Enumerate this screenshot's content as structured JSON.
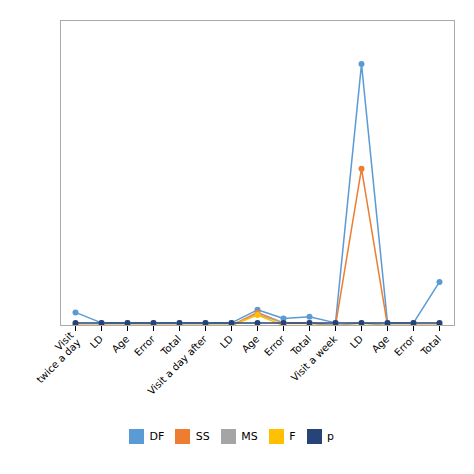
{
  "chart_data": {
    "type": "line",
    "categories": [
      "Visit\ntwice a day",
      "LD",
      "Age",
      "Error",
      "Total",
      "Visit a day after",
      "LD",
      "Age",
      "Error",
      "Total",
      "Visit a week",
      "LD",
      "Age",
      "Error",
      "Total"
    ],
    "series": [
      {
        "name": "DF",
        "color": "#5B9BD5",
        "values": [
          1.5,
          0.3,
          0.3,
          0.3,
          0.3,
          0.3,
          0.3,
          1.8,
          0.8,
          1.0,
          0.3,
          30.0,
          0.3,
          0.3,
          5.0
        ]
      },
      {
        "name": "SS",
        "color": "#ED7D31",
        "values": [
          0.0,
          0.0,
          0.0,
          0.0,
          0.0,
          0.0,
          0.0,
          1.5,
          0.3,
          0.3,
          0.0,
          18.0,
          0.0,
          0.0,
          0.0
        ]
      },
      {
        "name": "MS",
        "color": "#A5A5A5",
        "values": [
          0.0,
          0.0,
          0.0,
          0.0,
          0.0,
          0.0,
          0.0,
          1.3,
          0.3,
          0.3,
          0.0,
          0.3,
          0.0,
          0.0,
          0.0
        ]
      },
      {
        "name": "F",
        "color": "#FFC000",
        "values": [
          0.0,
          0.0,
          0.0,
          0.0,
          0.0,
          0.0,
          0.0,
          1.2,
          0.0,
          0.0,
          0.0,
          0.0,
          0.0,
          0.0,
          0.0
        ]
      },
      {
        "name": "p",
        "color": "#264478",
        "values": [
          0.3,
          0.3,
          0.3,
          0.3,
          0.3,
          0.3,
          0.3,
          0.3,
          0.3,
          0.3,
          0.3,
          0.3,
          0.3,
          0.3,
          0.3
        ]
      }
    ],
    "ylim": [
      0,
      35
    ],
    "tick_labels": "x",
    "grid": false,
    "legend": "bottom",
    "marker": "circle",
    "line_style": "solid"
  }
}
